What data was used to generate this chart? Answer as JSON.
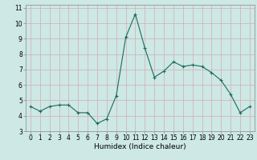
{
  "x": [
    0,
    1,
    2,
    3,
    4,
    5,
    6,
    7,
    8,
    9,
    10,
    11,
    12,
    13,
    14,
    15,
    16,
    17,
    18,
    19,
    20,
    21,
    22,
    23
  ],
  "y": [
    4.6,
    4.3,
    4.6,
    4.7,
    4.7,
    4.2,
    4.2,
    3.5,
    3.8,
    5.3,
    9.1,
    10.6,
    8.4,
    6.5,
    6.9,
    7.5,
    7.2,
    7.3,
    7.2,
    6.8,
    6.3,
    5.4,
    4.2,
    4.6
  ],
  "line_color": "#1a6b5e",
  "marker": "+",
  "marker_size": 3,
  "marker_linewidth": 0.8,
  "bg_color": "#cde8e5",
  "grid_color": "#b8d8d5",
  "xlabel": "Humidex (Indice chaleur)",
  "xlim": [
    -0.5,
    23.5
  ],
  "ylim": [
    3.0,
    11.2
  ],
  "yticks": [
    3,
    4,
    5,
    6,
    7,
    8,
    9,
    10,
    11
  ],
  "xticks": [
    0,
    1,
    2,
    3,
    4,
    5,
    6,
    7,
    8,
    9,
    10,
    11,
    12,
    13,
    14,
    15,
    16,
    17,
    18,
    19,
    20,
    21,
    22,
    23
  ],
  "tick_fontsize": 5.5,
  "xlabel_fontsize": 6.5,
  "line_width": 0.8
}
